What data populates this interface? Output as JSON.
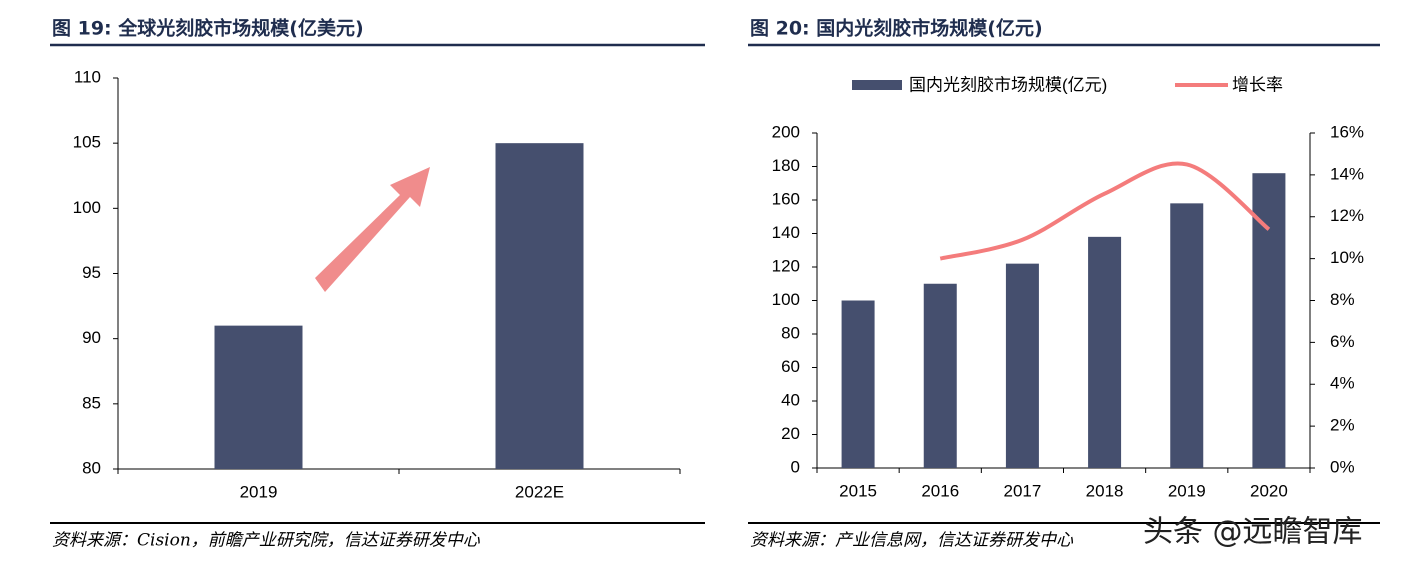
{
  "chart_data": [
    {
      "type": "bar",
      "title": "图 19:  全球光刻胶市场规模(亿美元)",
      "categories": [
        "2019",
        "2022E"
      ],
      "values": [
        91,
        105
      ],
      "color": "#454f6e",
      "ylim": [
        80,
        110
      ],
      "yticks": [
        80,
        85,
        90,
        95,
        100,
        105,
        110
      ],
      "source": "资料来源：Cision，前瞻产业研究院，信达证券研发中心"
    },
    {
      "type": "bar-line",
      "title": "图 20:  国内光刻胶市场规模(亿元)",
      "categories": [
        "2015",
        "2016",
        "2017",
        "2018",
        "2019",
        "2020"
      ],
      "series": [
        {
          "name": "国内光刻胶市场规模(亿元)",
          "color": "#454f6e",
          "values": [
            100,
            110,
            122,
            138,
            158,
            176
          ]
        },
        {
          "name": "增长率",
          "color": "#f47c7c",
          "axis": "y2",
          "values": [
            null,
            10,
            10.9,
            13.1,
            14.5,
            11.4
          ]
        }
      ],
      "ylim": [
        0,
        200
      ],
      "yticks": [
        0,
        20,
        40,
        60,
        80,
        100,
        120,
        140,
        160,
        180,
        200
      ],
      "y2lim": [
        0,
        16
      ],
      "y2ticks": [
        {
          "value": 0,
          "label": "0%"
        },
        {
          "value": 2,
          "label": "2%"
        },
        {
          "value": 4,
          "label": "4%"
        },
        {
          "value": 6,
          "label": "6%"
        },
        {
          "value": 8,
          "label": "8%"
        },
        {
          "value": 10,
          "label": "10%"
        },
        {
          "value": 12,
          "label": "12%"
        },
        {
          "value": 14,
          "label": "14%"
        },
        {
          "value": 16,
          "label": "16%"
        }
      ],
      "source": "资料来源：产业信息网，信达证券研发中心",
      "watermark": "头条 @远瞻智库"
    }
  ]
}
